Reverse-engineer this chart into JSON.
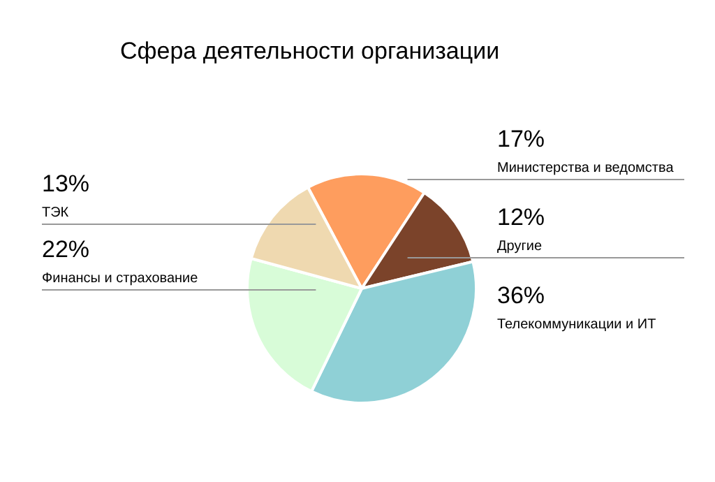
{
  "chart_data": {
    "type": "pie",
    "title": "Сфера деятельности организации",
    "categories": [
      "Министерства и ведомства",
      "Другие",
      "Телекоммуникации и ИТ",
      "Финансы и страхование",
      "ТЭК"
    ],
    "values": [
      17,
      12,
      36,
      22,
      13
    ],
    "colors": [
      "#fe9d5e",
      "#7b432a",
      "#8fd0d6",
      "#d8fcd8",
      "#efd9b0"
    ],
    "value_labels": [
      "17%",
      "12%",
      "36%",
      "22%",
      "13%"
    ],
    "legend": false
  }
}
